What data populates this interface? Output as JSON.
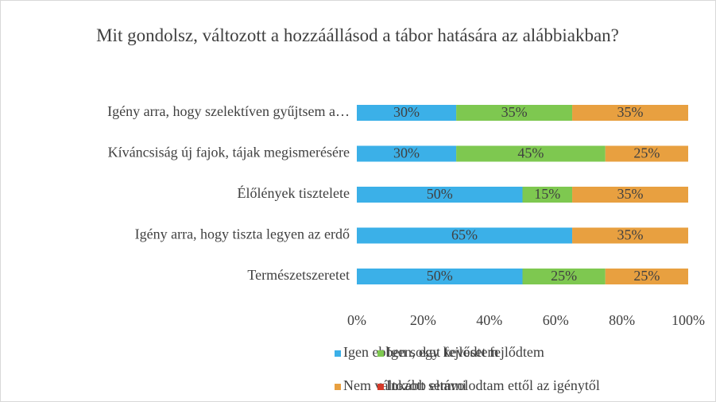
{
  "chart_data": {
    "type": "bar",
    "orientation": "horizontal",
    "stacked": true,
    "title": "Mit gondolsz, változott a hozzáállásod a tábor hatására az alábbiakban?",
    "categories": [
      "Igény arra, hogy szelektíven gyűjtsem a…",
      "Kíváncsiság új fajok, tájak megismerésére",
      "Élőlények tisztelete",
      "Igény arra, hogy tiszta legyen az erdő",
      "Természetszeretet"
    ],
    "series": [
      {
        "name": "Igen ebben sokat fejlődtem",
        "color": "#3bb0e8",
        "values": [
          30,
          30,
          50,
          65,
          50
        ],
        "value_labels": [
          "30%",
          "30%",
          "50%",
          "65%",
          "50%"
        ]
      },
      {
        "name": "Igen, egy keveset fejlődtem",
        "color": "#7ec850",
        "values": [
          35,
          45,
          15,
          null,
          25
        ],
        "value_labels": [
          "35%",
          "45%",
          "15%",
          null,
          "25%"
        ]
      },
      {
        "name": "Nem változott semmi",
        "color": "#e8a040",
        "values": [
          35,
          25,
          35,
          35,
          25
        ],
        "value_labels": [
          "35%",
          "25%",
          "35%",
          "35%",
          "25%"
        ]
      },
      {
        "name": "Inkább eltávolodtam ettől az igénytől",
        "color": "#d43a2a",
        "values": [
          null,
          null,
          null,
          null,
          null
        ]
      }
    ],
    "xlim": [
      0,
      100
    ],
    "xticks": [
      {
        "value": 0,
        "label": "0%"
      },
      {
        "value": 20,
        "label": "20%"
      },
      {
        "value": 40,
        "label": "40%"
      },
      {
        "value": 60,
        "label": "60%"
      },
      {
        "value": 80,
        "label": "80%"
      },
      {
        "value": 100,
        "label": "100%"
      }
    ],
    "legend": "bottom"
  }
}
